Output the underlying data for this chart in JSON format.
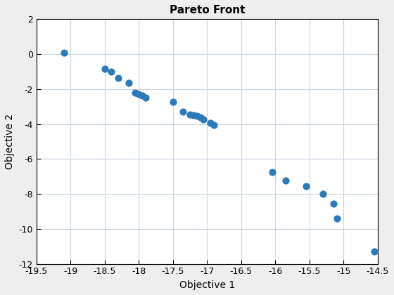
{
  "title": "Pareto Front",
  "xlabel": "Objective 1",
  "ylabel": "Objective 2",
  "xlim": [
    -19.5,
    -14.5
  ],
  "ylim": [
    -12,
    2
  ],
  "xticks": [
    -19.5,
    -19.0,
    -18.5,
    -18.0,
    -17.5,
    -17.0,
    -16.5,
    -16.0,
    -15.5,
    -15.0,
    -14.5
  ],
  "yticks": [
    -12,
    -10,
    -8,
    -6,
    -4,
    -2,
    0,
    2
  ],
  "x": [
    -19.1,
    -18.5,
    -18.4,
    -18.3,
    -18.15,
    -18.05,
    -18.0,
    -17.95,
    -17.9,
    -17.5,
    -17.35,
    -17.25,
    -17.2,
    -17.15,
    -17.1,
    -17.05,
    -16.95,
    -16.9,
    -16.05,
    -15.85,
    -15.55,
    -15.3,
    -15.15,
    -15.1,
    -14.55
  ],
  "y": [
    0.1,
    -0.85,
    -1.0,
    -1.35,
    -1.65,
    -2.2,
    -2.3,
    -2.35,
    -2.5,
    -2.75,
    -3.3,
    -3.45,
    -3.5,
    -3.55,
    -3.6,
    -3.75,
    -3.95,
    -4.05,
    -6.75,
    -7.25,
    -7.55,
    -8.0,
    -8.55,
    -9.4,
    -11.3
  ],
  "marker_color": "#2B7BBA",
  "marker_size": 40,
  "figure_facecolor": "#eeeeee",
  "axes_facecolor": "#ffffff",
  "grid_color": "#c8d4e0",
  "grid_linewidth": 0.8,
  "spine_color": "#000000",
  "title_fontsize": 11,
  "label_fontsize": 10,
  "tick_fontsize": 9
}
